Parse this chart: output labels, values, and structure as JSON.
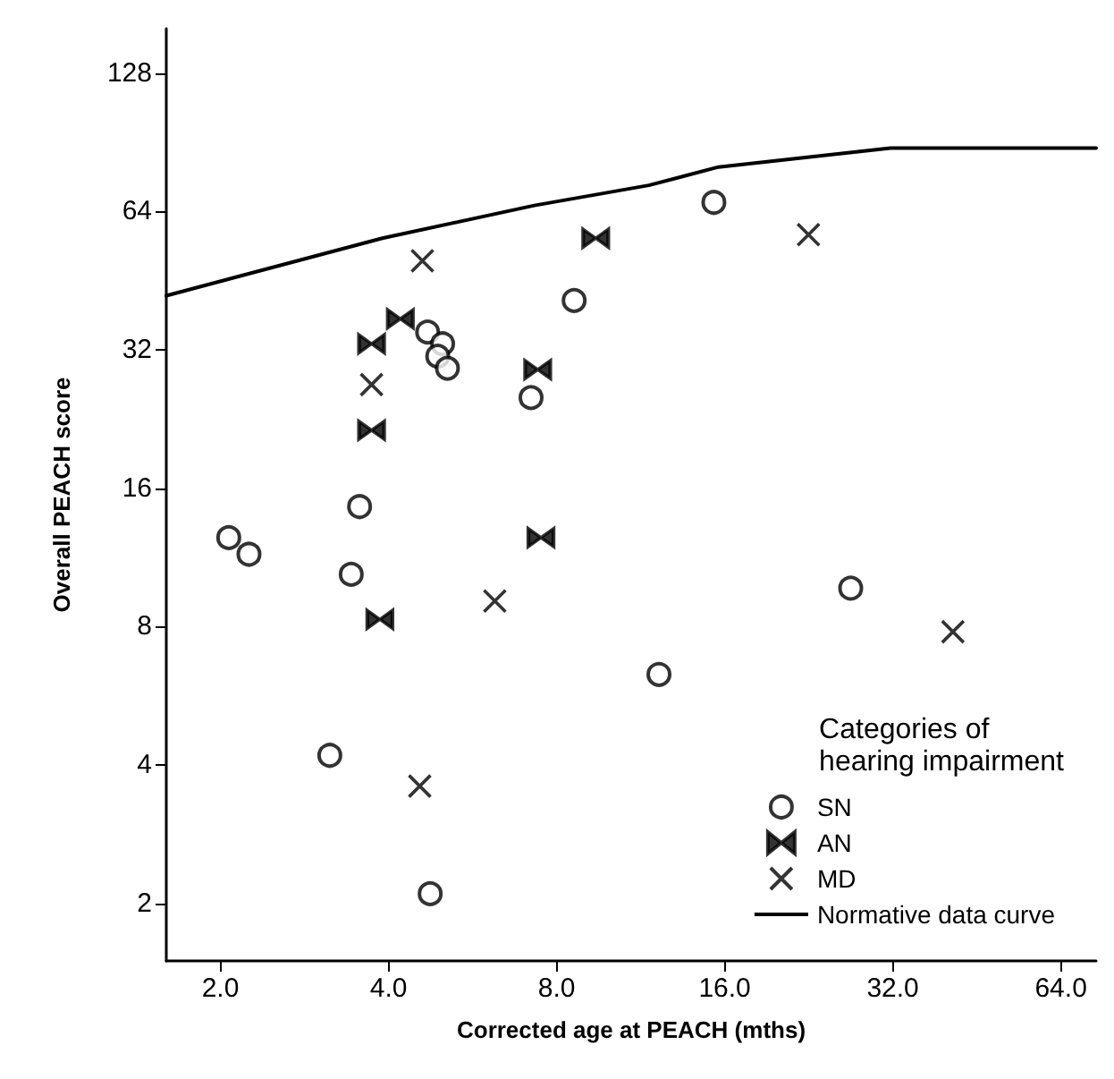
{
  "chart_data": {
    "type": "scatter",
    "xlabel": "Corrected age at PEACH (mths)",
    "ylabel": "Overall PEACH score",
    "legend_title": "Categories of hearing impairment",
    "log": "xy",
    "xlim": [
      1.6,
      74
    ],
    "ylim": [
      1.5,
      160
    ],
    "xticks": [
      {
        "value": 2,
        "label": "2.0"
      },
      {
        "value": 4,
        "label": "4.0"
      },
      {
        "value": 8,
        "label": "8.0"
      },
      {
        "value": 16,
        "label": "16.0"
      },
      {
        "value": 32,
        "label": "32.0"
      },
      {
        "value": 64,
        "label": "64.0"
      }
    ],
    "yticks": [
      2,
      4,
      8,
      16,
      32,
      64,
      128
    ],
    "grid": false,
    "legend": "bottom right",
    "series": [
      {
        "name": "SN",
        "color": "#000000",
        "marker": "circle",
        "x": [
          8.6,
          4.7,
          5.0,
          4.9,
          5.1,
          7.2,
          15.3,
          3.55,
          2.07,
          2.25,
          3.43,
          12.2,
          3.14,
          4.75,
          26.9
        ],
        "values": [
          41,
          35,
          33,
          31,
          29.2,
          25.2,
          67,
          14.6,
          12.5,
          11.5,
          10.4,
          6.3,
          4.2,
          2.1,
          9.7
        ]
      },
      {
        "name": "AN",
        "color": "#000000",
        "x": [
          9.4,
          4.2,
          3.73,
          7.4,
          3.73,
          7.5,
          3.86
        ],
        "values": [
          56,
          37.4,
          33,
          29,
          21.4,
          12.5,
          8.3
        ]
      },
      {
        "name": "MD",
        "color": "#000000",
        "marker": "cross",
        "x": [
          4.6,
          3.73,
          6.2,
          4.55,
          22.6,
          41
        ],
        "values": [
          50,
          26.9,
          9.1,
          3.6,
          57,
          7.8
        ]
      },
      {
        "name": "Normative data curve",
        "type": "line",
        "color": "#000000",
        "marker": "none",
        "line_style": "solid",
        "x": [
          1.6,
          3.9,
          7.3,
          11.7,
          15.6,
          31.7,
          74
        ],
        "values": [
          42,
          56,
          66,
          73,
          80,
          88,
          88
        ]
      }
    ]
  }
}
